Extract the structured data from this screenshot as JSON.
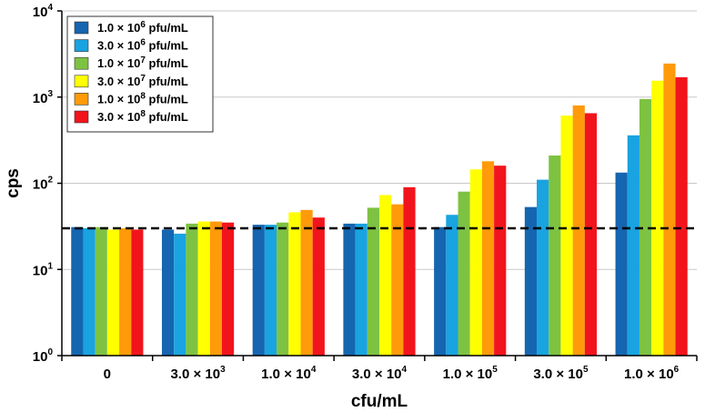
{
  "chart_data": {
    "type": "bar",
    "title": "",
    "xlabel": "cfu/mL",
    "ylabel": "cps",
    "yscale": "log",
    "ylim": [
      1,
      10000
    ],
    "grid": "horizontal",
    "legend_position": "top-left",
    "categories": [
      {
        "base": "0",
        "exp": ""
      },
      {
        "base": "3.0 × 10",
        "exp": "3"
      },
      {
        "base": "1.0 × 10",
        "exp": "4"
      },
      {
        "base": "3.0 × 10",
        "exp": "4"
      },
      {
        "base": "1.0 × 10",
        "exp": "5"
      },
      {
        "base": "3.0 × 10",
        "exp": "5"
      },
      {
        "base": "1.0 × 10",
        "exp": "6"
      }
    ],
    "y_ticks": [
      {
        "base": "10",
        "exp": "0",
        "value": 1
      },
      {
        "base": "10",
        "exp": "1",
        "value": 10
      },
      {
        "base": "10",
        "exp": "2",
        "value": 100
      },
      {
        "base": "10",
        "exp": "3",
        "value": 1000
      },
      {
        "base": "10",
        "exp": "4",
        "value": 10000
      }
    ],
    "threshold": 30,
    "series": [
      {
        "name": {
          "pre": "1.0 × 10",
          "exp": "6",
          "post": " pfu/mL"
        },
        "color": "#1565b0",
        "values": [
          31,
          29,
          33,
          34,
          31,
          53,
          133
        ]
      },
      {
        "name": {
          "pre": "3.0 × 10",
          "exp": "6",
          "post": " pfu/mL"
        },
        "color": "#19a3e0",
        "values": [
          30,
          26,
          33,
          34,
          43,
          110,
          360
        ]
      },
      {
        "name": {
          "pre": "1.0 × 10",
          "exp": "7",
          "post": " pfu/mL"
        },
        "color": "#7ec242",
        "values": [
          31,
          34,
          35,
          52,
          80,
          210,
          950
        ]
      },
      {
        "name": {
          "pre": "3.0 × 10",
          "exp": "7",
          "post": " pfu/mL"
        },
        "color": "#ffff00",
        "values": [
          29,
          36,
          46,
          73,
          145,
          610,
          1550
        ]
      },
      {
        "name": {
          "pre": "1.0 × 10",
          "exp": "8",
          "post": " pfu/mL"
        },
        "color": "#ff9a0a",
        "values": [
          30,
          36,
          49,
          57,
          180,
          800,
          2450
        ]
      },
      {
        "name": {
          "pre": "3.0 × 10",
          "exp": "8",
          "post": " pfu/mL"
        },
        "color": "#f2141c",
        "values": [
          29,
          35,
          40,
          90,
          160,
          650,
          1700
        ]
      }
    ]
  }
}
